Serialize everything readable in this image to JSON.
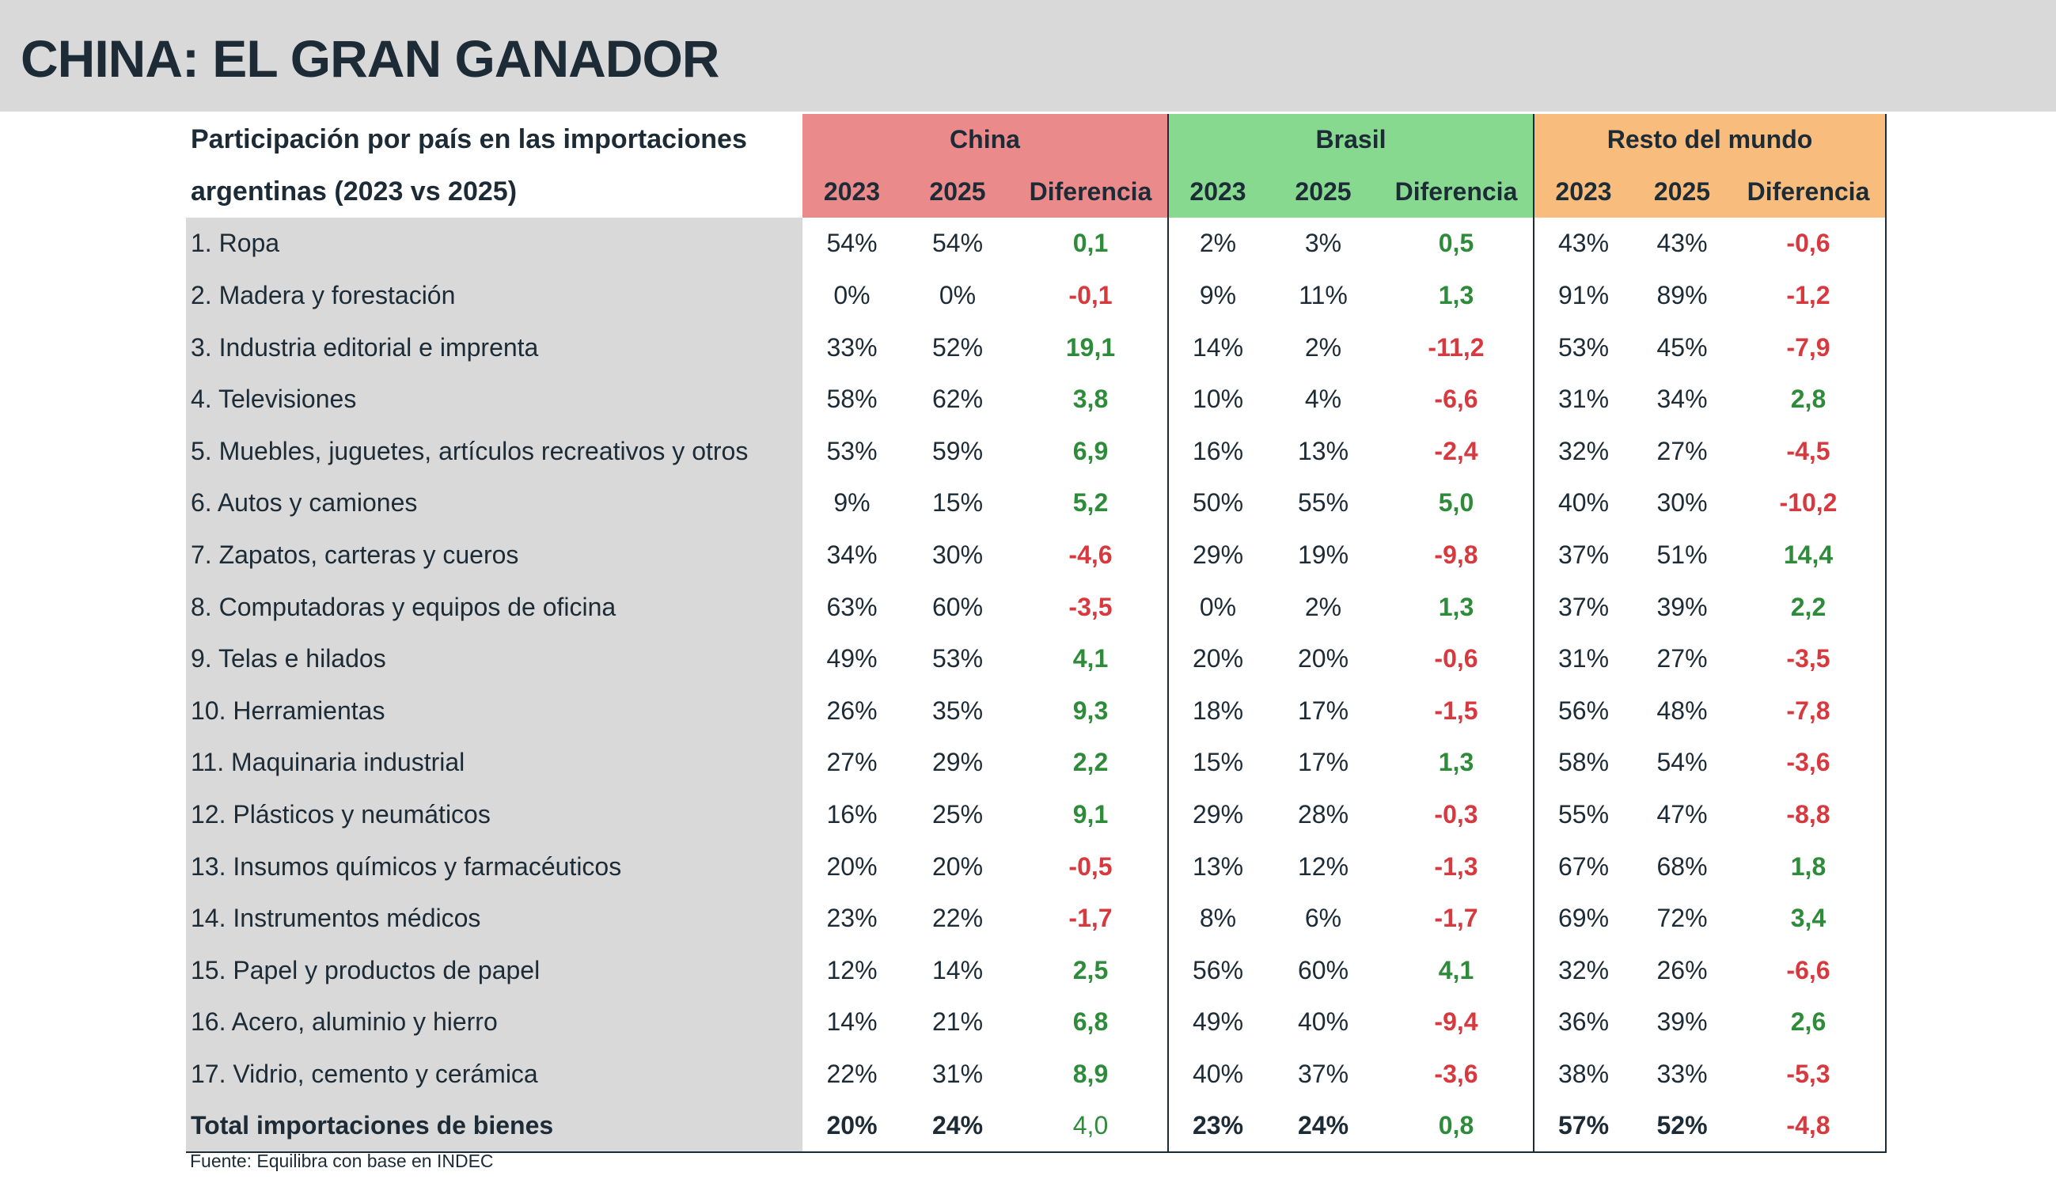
{
  "title": "CHINA: EL GRAN GANADOR",
  "table": {
    "caption_line1": "Participación por país en las importaciones",
    "caption_line2": "argentinas (2023 vs 2025)",
    "groups": [
      "China",
      "Brasil",
      "Resto del mundo"
    ],
    "subheaders": [
      "2023",
      "2025",
      "Diferencia"
    ],
    "colors": {
      "china": "#eb8a8a",
      "brasil": "#87d98f",
      "resto": "#f8bc7d",
      "positive": "#2e8b3a",
      "negative": "#d8393f"
    },
    "rows": [
      {
        "label": "1. Ropa",
        "v": [
          "54%",
          "54%",
          "0,1",
          "2%",
          "3%",
          "0,5",
          "43%",
          "43%",
          "-0,6"
        ]
      },
      {
        "label": "2. Madera y forestación",
        "v": [
          "0%",
          "0%",
          "-0,1",
          "9%",
          "11%",
          "1,3",
          "91%",
          "89%",
          "-1,2"
        ]
      },
      {
        "label": "3. Industria editorial e imprenta",
        "v": [
          "33%",
          "52%",
          "19,1",
          "14%",
          "2%",
          "-11,2",
          "53%",
          "45%",
          "-7,9"
        ]
      },
      {
        "label": "4. Televisiones",
        "v": [
          "58%",
          "62%",
          "3,8",
          "10%",
          "4%",
          "-6,6",
          "31%",
          "34%",
          "2,8"
        ]
      },
      {
        "label": "5. Muebles, juguetes, artículos recreativos y otros",
        "v": [
          "53%",
          "59%",
          "6,9",
          "16%",
          "13%",
          "-2,4",
          "32%",
          "27%",
          "-4,5"
        ]
      },
      {
        "label": "6. Autos y camiones",
        "v": [
          "9%",
          "15%",
          "5,2",
          "50%",
          "55%",
          "5,0",
          "40%",
          "30%",
          "-10,2"
        ]
      },
      {
        "label": "7. Zapatos, carteras y cueros",
        "v": [
          "34%",
          "30%",
          "-4,6",
          "29%",
          "19%",
          "-9,8",
          "37%",
          "51%",
          "14,4"
        ]
      },
      {
        "label": "8. Computadoras y equipos de oficina",
        "v": [
          "63%",
          "60%",
          "-3,5",
          "0%",
          "2%",
          "1,3",
          "37%",
          "39%",
          "2,2"
        ]
      },
      {
        "label": "9. Telas e hilados",
        "v": [
          "49%",
          "53%",
          "4,1",
          "20%",
          "20%",
          "-0,6",
          "31%",
          "27%",
          "-3,5"
        ]
      },
      {
        "label": "10. Herramientas",
        "v": [
          "26%",
          "35%",
          "9,3",
          "18%",
          "17%",
          "-1,5",
          "56%",
          "48%",
          "-7,8"
        ]
      },
      {
        "label": "11. Maquinaria industrial",
        "v": [
          "27%",
          "29%",
          "2,2",
          "15%",
          "17%",
          "1,3",
          "58%",
          "54%",
          "-3,6"
        ]
      },
      {
        "label": "12. Plásticos y neumáticos",
        "v": [
          "16%",
          "25%",
          "9,1",
          "29%",
          "28%",
          "-0,3",
          "55%",
          "47%",
          "-8,8"
        ]
      },
      {
        "label": "13. Insumos químicos y farmacéuticos",
        "v": [
          "20%",
          "20%",
          "-0,5",
          "13%",
          "12%",
          "-1,3",
          "67%",
          "68%",
          "1,8"
        ]
      },
      {
        "label": "14. Instrumentos médicos",
        "v": [
          "23%",
          "22%",
          "-1,7",
          "8%",
          "6%",
          "-1,7",
          "69%",
          "72%",
          "3,4"
        ]
      },
      {
        "label": "15. Papel y productos de papel",
        "v": [
          "12%",
          "14%",
          "2,5",
          "56%",
          "60%",
          "4,1",
          "32%",
          "26%",
          "-6,6"
        ]
      },
      {
        "label": "16. Acero, aluminio y hierro",
        "v": [
          "14%",
          "21%",
          "6,8",
          "49%",
          "40%",
          "-9,4",
          "36%",
          "39%",
          "2,6"
        ]
      },
      {
        "label": "17. Vidrio, cemento y cerámica",
        "v": [
          "22%",
          "31%",
          "8,9",
          "40%",
          "37%",
          "-3,6",
          "38%",
          "33%",
          "-5,3"
        ]
      }
    ],
    "total": {
      "label": "Total importaciones de bienes",
      "v": [
        "20%",
        "24%",
        "4,0",
        "23%",
        "24%",
        "0,8",
        "57%",
        "52%",
        "-4,8"
      ]
    }
  },
  "source": "Fuente: Equilibra con base en INDEC"
}
